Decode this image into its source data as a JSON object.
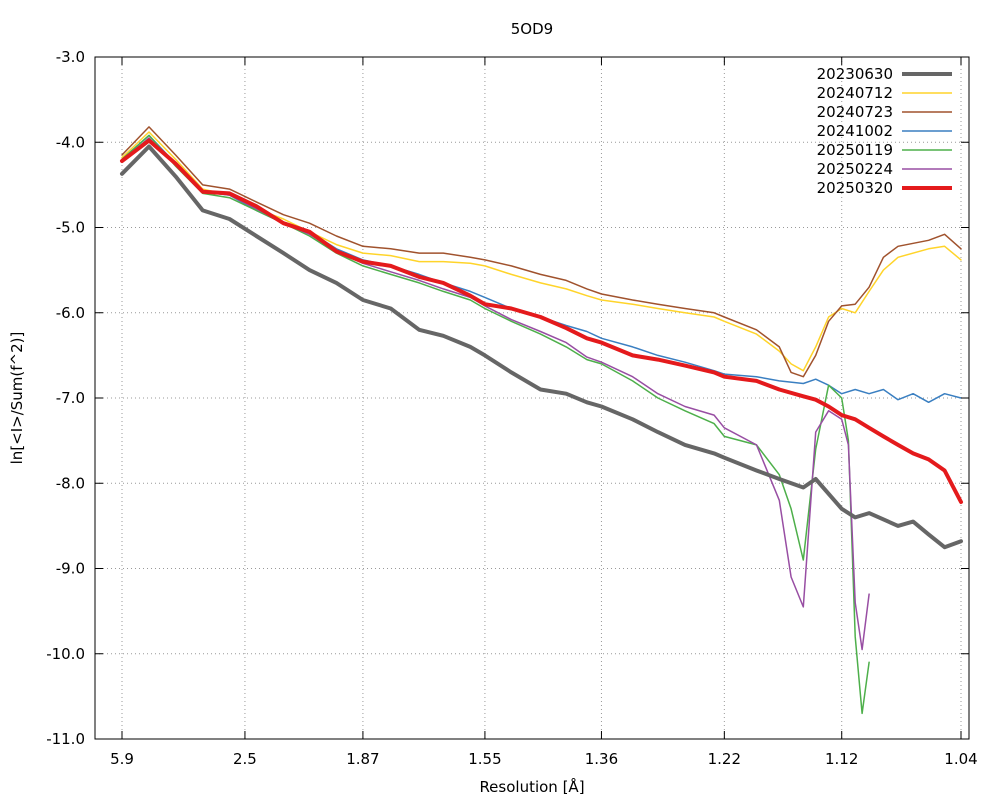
{
  "chart_data": {
    "type": "line",
    "title": "5OD9",
    "xlabel": "Resolution [Å]",
    "ylabel": "ln[<I>/Sum(f^2)]",
    "x_scale": "inverse-square-resolution",
    "xlim": [
      5.9,
      1.04
    ],
    "ylim": [
      -11.0,
      -3.0
    ],
    "x_ticks": [
      "5.9",
      "2.5",
      "1.87",
      "1.55",
      "1.36",
      "1.22",
      "1.12",
      "1.04"
    ],
    "x_tick_values": [
      5.9,
      2.5,
      1.87,
      1.55,
      1.36,
      1.22,
      1.12,
      1.04
    ],
    "y_ticks": [
      "-3.0",
      "-4.0",
      "-5.0",
      "-6.0",
      "-7.0",
      "-8.0",
      "-9.0",
      "-10.0",
      "-11.0"
    ],
    "y_tick_values": [
      -3.0,
      -4.0,
      -5.0,
      -6.0,
      -7.0,
      -8.0,
      -9.0,
      -10.0,
      -11.0
    ],
    "grid": true,
    "legend_position": "top-right",
    "series": [
      {
        "name": "20230630",
        "color": "#666666",
        "width": 4,
        "x": [
          5.9,
          4.17,
          3.41,
          2.95,
          2.64,
          2.41,
          2.23,
          2.09,
          1.97,
          1.87,
          1.78,
          1.7,
          1.64,
          1.58,
          1.55,
          1.5,
          1.45,
          1.41,
          1.38,
          1.36,
          1.32,
          1.29,
          1.26,
          1.23,
          1.22,
          1.19,
          1.17,
          1.15,
          1.14,
          1.12,
          1.11,
          1.1,
          1.08,
          1.07,
          1.06,
          1.05,
          1.04
        ],
        "y": [
          -4.37,
          -4.05,
          -4.4,
          -4.8,
          -4.9,
          -5.1,
          -5.3,
          -5.5,
          -5.65,
          -5.85,
          -5.95,
          -6.2,
          -6.27,
          -6.4,
          -6.5,
          -6.7,
          -6.9,
          -6.95,
          -7.05,
          -7.1,
          -7.25,
          -7.4,
          -7.55,
          -7.65,
          -7.7,
          -7.85,
          -7.95,
          -8.05,
          -7.95,
          -8.3,
          -8.4,
          -8.35,
          -8.5,
          -8.45,
          -8.6,
          -8.75,
          -8.68
        ]
      },
      {
        "name": "20240712",
        "color": "#ffd42a",
        "width": 1.5,
        "x": [
          5.9,
          4.17,
          3.41,
          2.95,
          2.64,
          2.41,
          2.23,
          2.09,
          1.97,
          1.87,
          1.78,
          1.7,
          1.64,
          1.58,
          1.55,
          1.5,
          1.45,
          1.41,
          1.38,
          1.36,
          1.32,
          1.29,
          1.26,
          1.23,
          1.22,
          1.19,
          1.17,
          1.16,
          1.15,
          1.14,
          1.13,
          1.12,
          1.11,
          1.1,
          1.09,
          1.08,
          1.06,
          1.05,
          1.04
        ],
        "y": [
          -4.18,
          -3.88,
          -4.2,
          -4.55,
          -4.62,
          -4.78,
          -4.9,
          -5.05,
          -5.2,
          -5.3,
          -5.33,
          -5.4,
          -5.4,
          -5.42,
          -5.45,
          -5.55,
          -5.65,
          -5.72,
          -5.8,
          -5.85,
          -5.9,
          -5.95,
          -6.0,
          -6.05,
          -6.1,
          -6.25,
          -6.45,
          -6.6,
          -6.68,
          -6.4,
          -6.05,
          -5.95,
          -6.0,
          -5.75,
          -5.5,
          -5.35,
          -5.25,
          -5.22,
          -5.38
        ]
      },
      {
        "name": "20240723",
        "color": "#a0522d",
        "width": 1.5,
        "x": [
          5.9,
          4.17,
          3.41,
          2.95,
          2.64,
          2.41,
          2.23,
          2.09,
          1.97,
          1.87,
          1.78,
          1.7,
          1.64,
          1.58,
          1.55,
          1.5,
          1.45,
          1.41,
          1.38,
          1.36,
          1.32,
          1.29,
          1.26,
          1.23,
          1.22,
          1.19,
          1.17,
          1.16,
          1.15,
          1.14,
          1.13,
          1.12,
          1.11,
          1.1,
          1.09,
          1.08,
          1.06,
          1.05,
          1.04
        ],
        "y": [
          -4.15,
          -3.82,
          -4.15,
          -4.5,
          -4.55,
          -4.7,
          -4.85,
          -4.95,
          -5.1,
          -5.22,
          -5.25,
          -5.3,
          -5.3,
          -5.35,
          -5.38,
          -5.45,
          -5.55,
          -5.62,
          -5.72,
          -5.78,
          -5.85,
          -5.9,
          -5.95,
          -6.0,
          -6.05,
          -6.2,
          -6.4,
          -6.7,
          -6.75,
          -6.5,
          -6.1,
          -5.92,
          -5.9,
          -5.7,
          -5.35,
          -5.22,
          -5.15,
          -5.08,
          -5.25
        ]
      },
      {
        "name": "20241002",
        "color": "#3a7fc1",
        "width": 1.5,
        "x": [
          5.9,
          4.17,
          3.41,
          2.95,
          2.64,
          2.41,
          2.23,
          2.09,
          1.97,
          1.87,
          1.78,
          1.7,
          1.64,
          1.58,
          1.55,
          1.5,
          1.45,
          1.41,
          1.38,
          1.36,
          1.32,
          1.29,
          1.26,
          1.23,
          1.22,
          1.19,
          1.17,
          1.15,
          1.14,
          1.13,
          1.12,
          1.11,
          1.1,
          1.09,
          1.08,
          1.07,
          1.06,
          1.05,
          1.04
        ],
        "y": [
          -4.2,
          -3.92,
          -4.25,
          -4.58,
          -4.62,
          -4.8,
          -4.95,
          -5.05,
          -5.25,
          -5.38,
          -5.45,
          -5.55,
          -5.65,
          -5.75,
          -5.82,
          -5.95,
          -6.05,
          -6.15,
          -6.22,
          -6.3,
          -6.4,
          -6.5,
          -6.58,
          -6.68,
          -6.72,
          -6.75,
          -6.8,
          -6.83,
          -6.78,
          -6.85,
          -6.95,
          -6.9,
          -6.95,
          -6.9,
          -7.02,
          -6.95,
          -7.05,
          -6.95,
          -7.0
        ]
      },
      {
        "name": "20250119",
        "color": "#4daf4a",
        "width": 1.5,
        "x": [
          5.9,
          4.17,
          3.41,
          2.95,
          2.64,
          2.41,
          2.23,
          2.09,
          1.97,
          1.87,
          1.78,
          1.7,
          1.64,
          1.58,
          1.55,
          1.5,
          1.45,
          1.41,
          1.38,
          1.36,
          1.32,
          1.29,
          1.26,
          1.23,
          1.22,
          1.19,
          1.17,
          1.16,
          1.15,
          1.14,
          1.13,
          1.12,
          1.115,
          1.11,
          1.105,
          1.1
        ],
        "y": [
          -4.2,
          -3.92,
          -4.28,
          -4.6,
          -4.65,
          -4.8,
          -4.95,
          -5.1,
          -5.3,
          -5.45,
          -5.55,
          -5.65,
          -5.75,
          -5.85,
          -5.95,
          -6.1,
          -6.25,
          -6.4,
          -6.55,
          -6.6,
          -6.8,
          -7.0,
          -7.15,
          -7.3,
          -7.45,
          -7.55,
          -7.9,
          -8.3,
          -8.9,
          -7.6,
          -6.85,
          -7.0,
          -7.5,
          -9.8,
          -10.7,
          -10.1
        ]
      },
      {
        "name": "20250224",
        "color": "#984ea3",
        "width": 1.5,
        "x": [
          5.9,
          4.17,
          3.41,
          2.95,
          2.64,
          2.41,
          2.23,
          2.09,
          1.97,
          1.87,
          1.78,
          1.7,
          1.64,
          1.58,
          1.55,
          1.5,
          1.45,
          1.41,
          1.38,
          1.36,
          1.32,
          1.29,
          1.26,
          1.23,
          1.22,
          1.19,
          1.17,
          1.16,
          1.15,
          1.14,
          1.13,
          1.12,
          1.115,
          1.11,
          1.105,
          1.1
        ],
        "y": [
          -4.22,
          -3.95,
          -4.27,
          -4.58,
          -4.62,
          -4.78,
          -4.95,
          -5.08,
          -5.28,
          -5.42,
          -5.52,
          -5.62,
          -5.72,
          -5.82,
          -5.92,
          -6.08,
          -6.22,
          -6.35,
          -6.52,
          -6.58,
          -6.75,
          -6.95,
          -7.1,
          -7.2,
          -7.35,
          -7.55,
          -8.2,
          -9.1,
          -9.45,
          -7.4,
          -7.15,
          -7.25,
          -7.55,
          -9.4,
          -9.95,
          -9.3
        ]
      },
      {
        "name": "20250320",
        "color": "#e41a1c",
        "width": 4,
        "x": [
          5.9,
          4.17,
          3.41,
          2.95,
          2.64,
          2.41,
          2.23,
          2.09,
          1.97,
          1.87,
          1.78,
          1.7,
          1.64,
          1.58,
          1.55,
          1.5,
          1.45,
          1.41,
          1.38,
          1.36,
          1.32,
          1.29,
          1.26,
          1.23,
          1.22,
          1.19,
          1.17,
          1.15,
          1.14,
          1.13,
          1.12,
          1.11,
          1.1,
          1.09,
          1.08,
          1.07,
          1.06,
          1.05,
          1.04
        ],
        "y": [
          -4.22,
          -3.98,
          -4.25,
          -4.58,
          -4.6,
          -4.75,
          -4.95,
          -5.05,
          -5.28,
          -5.4,
          -5.45,
          -5.58,
          -5.65,
          -5.8,
          -5.9,
          -5.95,
          -6.05,
          -6.18,
          -6.3,
          -6.35,
          -6.5,
          -6.55,
          -6.62,
          -6.7,
          -6.75,
          -6.8,
          -6.9,
          -6.98,
          -7.02,
          -7.1,
          -7.2,
          -7.25,
          -7.35,
          -7.45,
          -7.55,
          -7.65,
          -7.72,
          -7.85,
          -8.22
        ]
      }
    ]
  }
}
